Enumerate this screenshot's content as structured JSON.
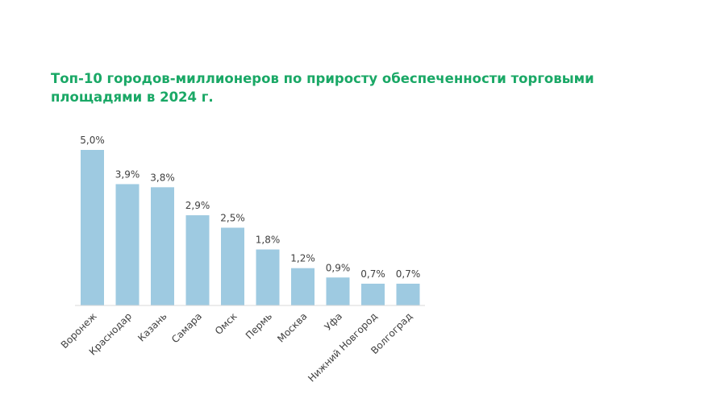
{
  "chart_data": {
    "type": "bar",
    "title_line1": "Топ-10 городов-миллионеров по приросту обеспеченности торговыми",
    "title_line2": "площадями в 2024 г.",
    "categories": [
      "Воронеж",
      "Краснодар",
      "Казань",
      "Самара",
      "Омск",
      "Пермь",
      "Москва",
      "Уфа",
      "Нижний Новгород",
      "Волгоград"
    ],
    "values": [
      5.0,
      3.9,
      3.8,
      2.9,
      2.5,
      1.8,
      1.2,
      0.9,
      0.7,
      0.7
    ],
    "data_labels": [
      "5,0%",
      "3,9%",
      "3,8%",
      "2,9%",
      "2,5%",
      "1,8%",
      "1,2%",
      "0,9%",
      "0,7%",
      "0,7%"
    ],
    "xlabel": "",
    "ylabel": "",
    "ylim": [
      0,
      5.0
    ],
    "grid": false,
    "bar_color": "#9ecae1",
    "title_color": "#1aa866"
  }
}
